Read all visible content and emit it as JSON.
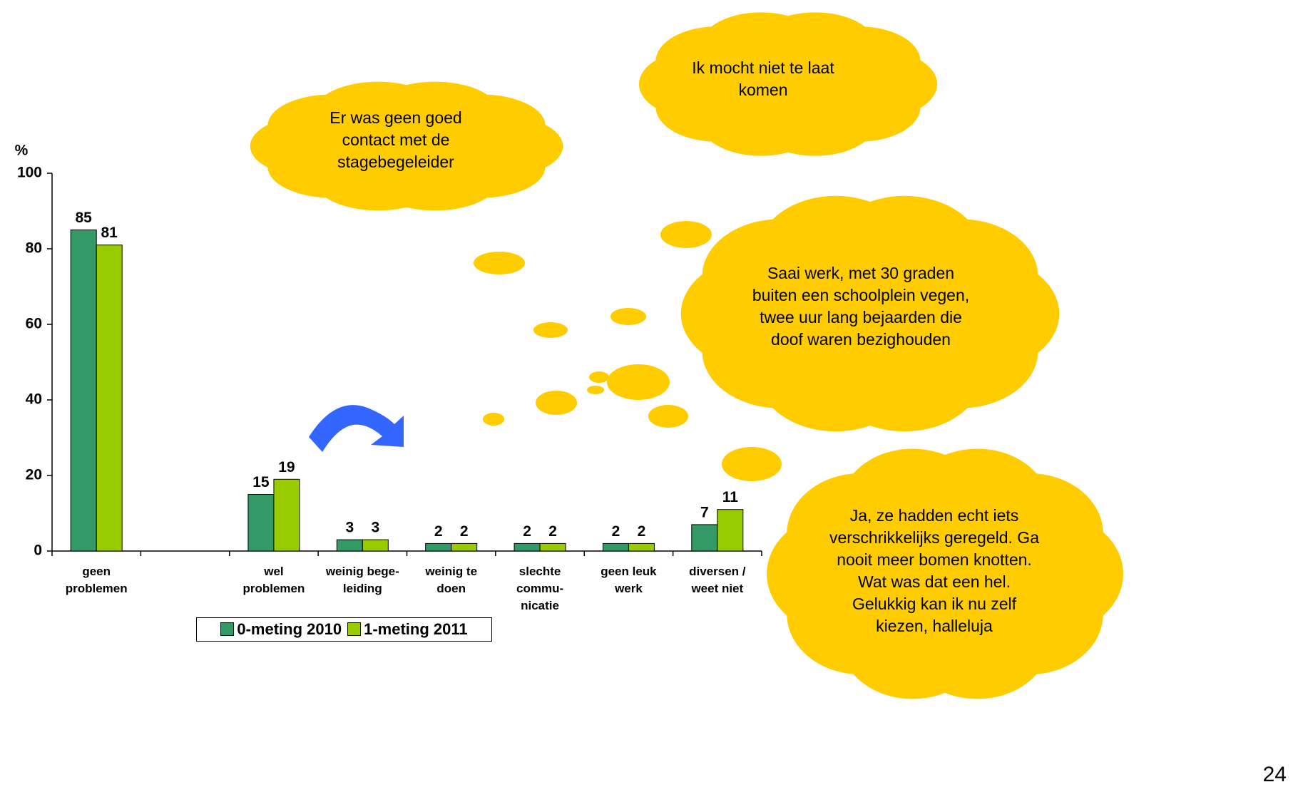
{
  "chart_data": {
    "type": "bar",
    "y_label": "%",
    "categories": [
      "geen problemen",
      null,
      "wel problemen",
      "weinig bege-leiding",
      "weinig te doen",
      "slechte commu-nicatie",
      "geen leuk werk",
      "diversen / weet niet"
    ],
    "series": [
      {
        "name": "0-meting 2010",
        "color": "#339966",
        "values": [
          85,
          null,
          15,
          3,
          2,
          2,
          2,
          7
        ]
      },
      {
        "name": "1-meting 2011",
        "color": "#99cc00",
        "values": [
          81,
          null,
          19,
          3,
          2,
          2,
          2,
          11
        ]
      }
    ],
    "ylim": [
      0,
      100
    ],
    "yticks": [
      0,
      20,
      40,
      60,
      80,
      100
    ],
    "legend": "bottom"
  },
  "annotations": [
    {
      "text": "Er was geen goed contact met de stagebegeleider"
    },
    {
      "text": "Ik mocht niet te laat komen"
    },
    {
      "text": "Saai werk, met 30 graden buiten een schoolplein vegen, twee uur lang bejaarden die doof waren bezighouden"
    },
    {
      "text": "Ja, ze hadden echt iets verschrikkelijks geregeld. Ga nooit meer bomen knotten. Wat was dat een hel. Gelukkig kan ik nu zelf kiezen, halleluja"
    }
  ],
  "page_number": "24"
}
